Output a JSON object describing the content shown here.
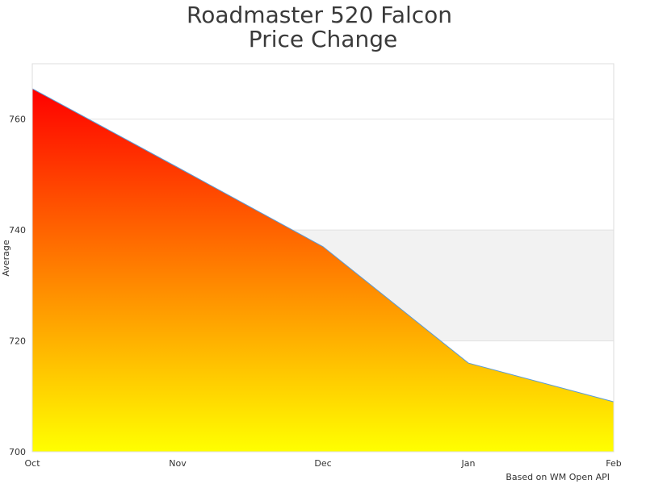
{
  "chart_data": {
    "type": "area",
    "title_lines": [
      "Roadmaster 520 Falcon",
      "Price Change"
    ],
    "categories": [
      "Oct",
      "Nov",
      "Dec",
      "Jan",
      "Feb"
    ],
    "series": [
      {
        "values": [
          765.5,
          751.3,
          737.0,
          716.0,
          709.0
        ]
      }
    ],
    "xlabel": "",
    "ylabel": "Average",
    "ylim": [
      700,
      770
    ],
    "yticks": [
      700,
      720,
      740,
      760
    ],
    "grid": true,
    "plot_bands": [
      {
        "from": 720,
        "to": 740,
        "color": "#f2f2f2"
      }
    ],
    "fill_gradient": {
      "top": "#ff0000",
      "bottom": "#ffff00"
    },
    "line_color": "#5b9bd5",
    "credit": "Based on WM Open API"
  }
}
